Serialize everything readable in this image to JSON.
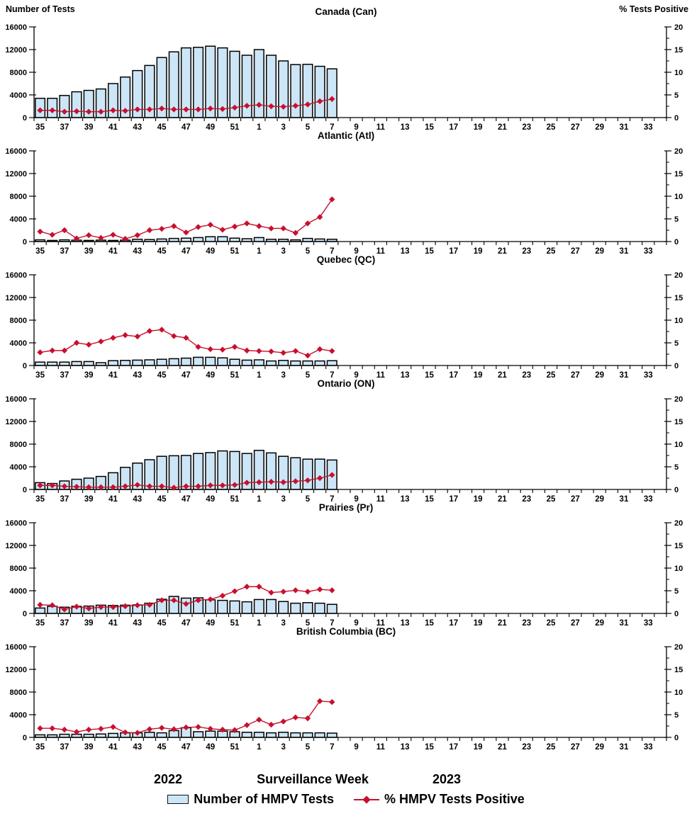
{
  "chart_data": {
    "type": "bar",
    "subtype": "multi-panel bar+line dual-axis",
    "grid": false,
    "legend_position": "bottom",
    "left_axis": {
      "label": "Number of Tests",
      "lim": [
        0,
        16000
      ],
      "tick_step": 4000,
      "ticks": [
        "0",
        "4000",
        "8000",
        "12000",
        "16000"
      ]
    },
    "right_axis": {
      "label": "% Tests Positive",
      "lim": [
        0,
        20
      ],
      "tick_step": 5,
      "minor_tick_step": 2.5,
      "ticks": [
        "0",
        "5",
        "10",
        "15",
        "20"
      ]
    },
    "x_axis": {
      "label": "Surveillance Week",
      "year_left": "2022",
      "year_right": "2023",
      "categories": [
        "35",
        "36",
        "37",
        "38",
        "39",
        "40",
        "41",
        "42",
        "43",
        "44",
        "45",
        "46",
        "47",
        "48",
        "49",
        "50",
        "51",
        "52",
        "1",
        "2",
        "3",
        "4",
        "5",
        "6",
        "7",
        "8",
        "9",
        "10",
        "11",
        "12",
        "13",
        "14",
        "15",
        "16",
        "17",
        "18",
        "19",
        "20",
        "21",
        "22",
        "23",
        "24",
        "25",
        "26",
        "27",
        "28",
        "29",
        "30",
        "31",
        "32",
        "33",
        "34"
      ],
      "labeled_categories": [
        "35",
        "37",
        "39",
        "41",
        "43",
        "45",
        "47",
        "49",
        "51",
        "1",
        "3",
        "5",
        "7",
        "9",
        "11",
        "13",
        "15",
        "17",
        "19",
        "21",
        "23",
        "25",
        "27",
        "29",
        "31",
        "33"
      ]
    },
    "data_weeks": [
      "35",
      "36",
      "37",
      "38",
      "39",
      "40",
      "41",
      "42",
      "43",
      "44",
      "45",
      "46",
      "47",
      "48",
      "49",
      "50",
      "51",
      "52",
      "1",
      "2",
      "3",
      "4",
      "5",
      "6",
      "7"
    ],
    "series": [
      {
        "name": "Number of HMPV Tests",
        "type": "bar",
        "axis": "left",
        "fill": "#CDE6F7",
        "stroke": "#000000"
      },
      {
        "name": "% HMPV Tests Positive",
        "type": "line",
        "axis": "right",
        "color": "#C8102E",
        "marker": "diamond"
      }
    ],
    "panels": [
      {
        "id": "can",
        "title": "Canada (Can)",
        "tests": [
          3400,
          3400,
          3900,
          4550,
          4800,
          5050,
          6000,
          7150,
          8300,
          9200,
          10600,
          11600,
          12300,
          12400,
          12600,
          12300,
          11700,
          11000,
          12000,
          11000,
          10000,
          9350,
          9400,
          9050,
          8600
        ],
        "pct_positive": [
          1.6,
          1.6,
          1.3,
          1.4,
          1.3,
          1.3,
          1.6,
          1.5,
          1.8,
          1.8,
          2.0,
          1.8,
          1.8,
          1.8,
          2.0,
          1.9,
          2.2,
          2.6,
          2.8,
          2.5,
          2.4,
          2.6,
          2.9,
          3.6,
          4.1
        ]
      },
      {
        "id": "atl",
        "title": "Atlantic (Atl)",
        "tests": [
          300,
          200,
          300,
          250,
          200,
          250,
          200,
          250,
          400,
          350,
          450,
          550,
          600,
          700,
          850,
          850,
          600,
          500,
          700,
          400,
          400,
          300,
          550,
          450,
          400
        ],
        "pct_positive": [
          2.2,
          1.5,
          2.5,
          0.7,
          1.4,
          0.8,
          1.5,
          0.6,
          1.4,
          2.5,
          2.8,
          3.4,
          2.0,
          3.2,
          3.7,
          2.6,
          3.3,
          4.0,
          3.4,
          2.9,
          2.9,
          1.9,
          4.0,
          5.4,
          9.3
        ]
      },
      {
        "id": "qc",
        "title": "Quebec (QC)",
        "tests": [
          600,
          600,
          600,
          700,
          700,
          500,
          850,
          900,
          950,
          1000,
          1100,
          1200,
          1300,
          1450,
          1450,
          1350,
          1100,
          950,
          1000,
          800,
          900,
          800,
          800,
          800,
          850
        ],
        "pct_positive": [
          2.9,
          3.3,
          3.3,
          5.0,
          4.6,
          5.3,
          6.1,
          6.7,
          6.4,
          7.6,
          7.9,
          6.5,
          6.1,
          4.1,
          3.6,
          3.5,
          4.1,
          3.3,
          3.2,
          3.1,
          2.8,
          3.2,
          2.2,
          3.6,
          3.2
        ]
      },
      {
        "id": "on",
        "title": "Ontario (ON)",
        "tests": [
          1200,
          1050,
          1500,
          1800,
          2000,
          2300,
          2950,
          3900,
          4650,
          5250,
          5850,
          5950,
          6000,
          6350,
          6500,
          6800,
          6700,
          6350,
          6900,
          6450,
          5850,
          5600,
          5350,
          5350,
          5200
        ],
        "pct_positive": [
          0.9,
          0.9,
          0.7,
          0.6,
          0.5,
          0.5,
          0.5,
          0.7,
          1.0,
          0.7,
          0.7,
          0.4,
          0.7,
          0.7,
          0.9,
          0.9,
          1.0,
          1.5,
          1.6,
          1.7,
          1.6,
          1.8,
          2.0,
          2.5,
          3.2
        ]
      },
      {
        "id": "pr",
        "title": "Prairies (Pr)",
        "tests": [
          950,
          1250,
          1100,
          1250,
          1300,
          1450,
          1400,
          1450,
          1500,
          1800,
          2500,
          3000,
          2700,
          2750,
          2400,
          2300,
          2200,
          2050,
          2450,
          2450,
          2100,
          1800,
          1900,
          1800,
          1600
        ],
        "pct_positive": [
          1.9,
          1.8,
          0.9,
          1.5,
          1.1,
          1.4,
          1.4,
          1.6,
          1.8,
          1.9,
          2.9,
          2.9,
          2.1,
          2.9,
          3.1,
          3.9,
          4.9,
          5.9,
          5.9,
          4.6,
          4.8,
          5.1,
          4.8,
          5.3,
          5.1
        ]
      },
      {
        "id": "bc",
        "title": "British Columbia (BC)",
        "tests": [
          450,
          450,
          550,
          550,
          550,
          600,
          700,
          800,
          800,
          900,
          800,
          1200,
          1700,
          1000,
          1100,
          1100,
          1000,
          900,
          900,
          800,
          900,
          800,
          800,
          800,
          750
        ],
        "pct_positive": [
          2.0,
          2.0,
          1.7,
          1.2,
          1.7,
          1.9,
          2.3,
          1.1,
          1.0,
          1.8,
          2.1,
          1.8,
          2.2,
          2.3,
          1.9,
          1.7,
          1.6,
          2.7,
          3.9,
          2.8,
          3.5,
          4.4,
          4.2,
          8.0,
          7.8
        ]
      }
    ]
  },
  "colors": {
    "bar_fill": "#CDE6F7",
    "bar_stroke": "#000000",
    "line": "#C8102E",
    "axis": "#000000",
    "background": "#FFFFFF"
  }
}
